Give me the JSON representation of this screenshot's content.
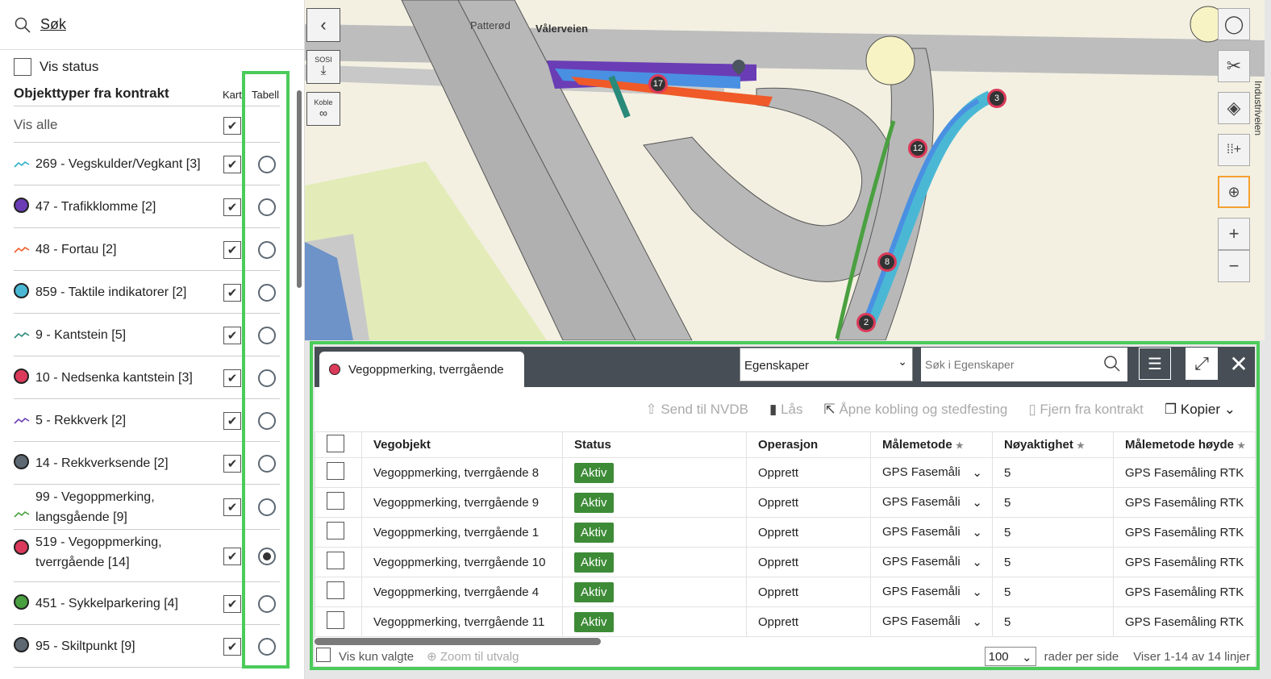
{
  "sidebar": {
    "search_label": "Søk",
    "vis_status": "Vis status",
    "section_title": "Objekttyper fra kontrakt",
    "col_kart": "Kart",
    "col_tabell": "Tabell",
    "vis_alle": "Vis alle",
    "items": [
      {
        "label": "269 - Vegskulder/Vegkant [3]",
        "icon": "line",
        "color": "#2ab0c8",
        "selected": false
      },
      {
        "label": "47 - Trafikklomme [2]",
        "icon": "dot",
        "color": "#6a3db5",
        "selected": false
      },
      {
        "label": "48 - Fortau [2]",
        "icon": "line",
        "color": "#f05a28",
        "selected": false
      },
      {
        "label": "859 - Taktile indikatorer [2]",
        "icon": "dot",
        "color": "#4ab8d4",
        "selected": false
      },
      {
        "label": "9 - Kantstein [5]",
        "icon": "line",
        "color": "#2a8a7a",
        "selected": false
      },
      {
        "label": "10 - Nedsenka kantstein [3]",
        "icon": "dot",
        "color": "#dc3a5a",
        "selected": false
      },
      {
        "label": "5 - Rekkverk [2]",
        "icon": "line",
        "color": "#6a3db5",
        "selected": false
      },
      {
        "label": "14 - Rekkverksende [2]",
        "icon": "dot",
        "color": "#5d6873",
        "selected": false
      },
      {
        "label": "99 - Vegoppmerking, langsgående [9]",
        "icon": "line",
        "color": "#4aa040",
        "selected": false
      },
      {
        "label": "519 - Vegoppmerking, tverrgående [14]",
        "icon": "dot",
        "color": "#dc3a5a",
        "selected": true
      },
      {
        "label": "451 - Sykkelparkering [4]",
        "icon": "dot",
        "color": "#4aa040",
        "selected": false
      },
      {
        "label": "95 - Skiltpunkt [9]",
        "icon": "dot",
        "color": "#5d6873",
        "selected": false
      }
    ]
  },
  "map": {
    "labels": [
      "Patterød",
      "Vålerveien",
      "Industriveien"
    ],
    "sosi_label": "SOSI",
    "koble_label": "Koble",
    "clusters": [
      "17",
      "3",
      "12",
      "8",
      "2"
    ],
    "active_tool_color": "#f5a030"
  },
  "panel": {
    "tab_label": "Vegoppmerking, tverrgående",
    "tab_color": "#dc3a5a",
    "select_value": "Egenskaper",
    "search_placeholder": "Søk i Egenskaper",
    "toolbar": {
      "send": "Send til NVDB",
      "lock": "Lås",
      "open": "Åpne kobling og stedfesting",
      "remove": "Fjern fra kontrakt",
      "copy": "Kopier"
    },
    "columns": [
      "Vegobjekt",
      "Status",
      "Operasjon",
      "Målemetode",
      "Nøyaktighet",
      "Målemetode høyde"
    ],
    "rows": [
      {
        "name": "Vegoppmerking, tverrgående 8",
        "status": "Aktiv",
        "op": "Opprett",
        "method": "GPS Fasemåli",
        "acc": "5",
        "hmethod": "GPS Fasemåling RTK"
      },
      {
        "name": "Vegoppmerking, tverrgående 9",
        "status": "Aktiv",
        "op": "Opprett",
        "method": "GPS Fasemåli",
        "acc": "5",
        "hmethod": "GPS Fasemåling RTK"
      },
      {
        "name": "Vegoppmerking, tverrgående 1",
        "status": "Aktiv",
        "op": "Opprett",
        "method": "GPS Fasemåli",
        "acc": "5",
        "hmethod": "GPS Fasemåling RTK"
      },
      {
        "name": "Vegoppmerking, tverrgående 10",
        "status": "Aktiv",
        "op": "Opprett",
        "method": "GPS Fasemåli",
        "acc": "5",
        "hmethod": "GPS Fasemåling RTK"
      },
      {
        "name": "Vegoppmerking, tverrgående 4",
        "status": "Aktiv",
        "op": "Opprett",
        "method": "GPS Fasemåli",
        "acc": "5",
        "hmethod": "GPS Fasemåling RTK"
      },
      {
        "name": "Vegoppmerking, tverrgående 11",
        "status": "Aktiv",
        "op": "Opprett",
        "method": "GPS Fasemåli",
        "acc": "5",
        "hmethod": "GPS Fasemåling RTK"
      }
    ],
    "footer": {
      "only_selected": "Vis kun valgte",
      "zoom": "Zoom til utvalg",
      "page_size": "100",
      "per_page": "rader per side",
      "showing": "Viser 1-14 av 14 linjer"
    }
  }
}
